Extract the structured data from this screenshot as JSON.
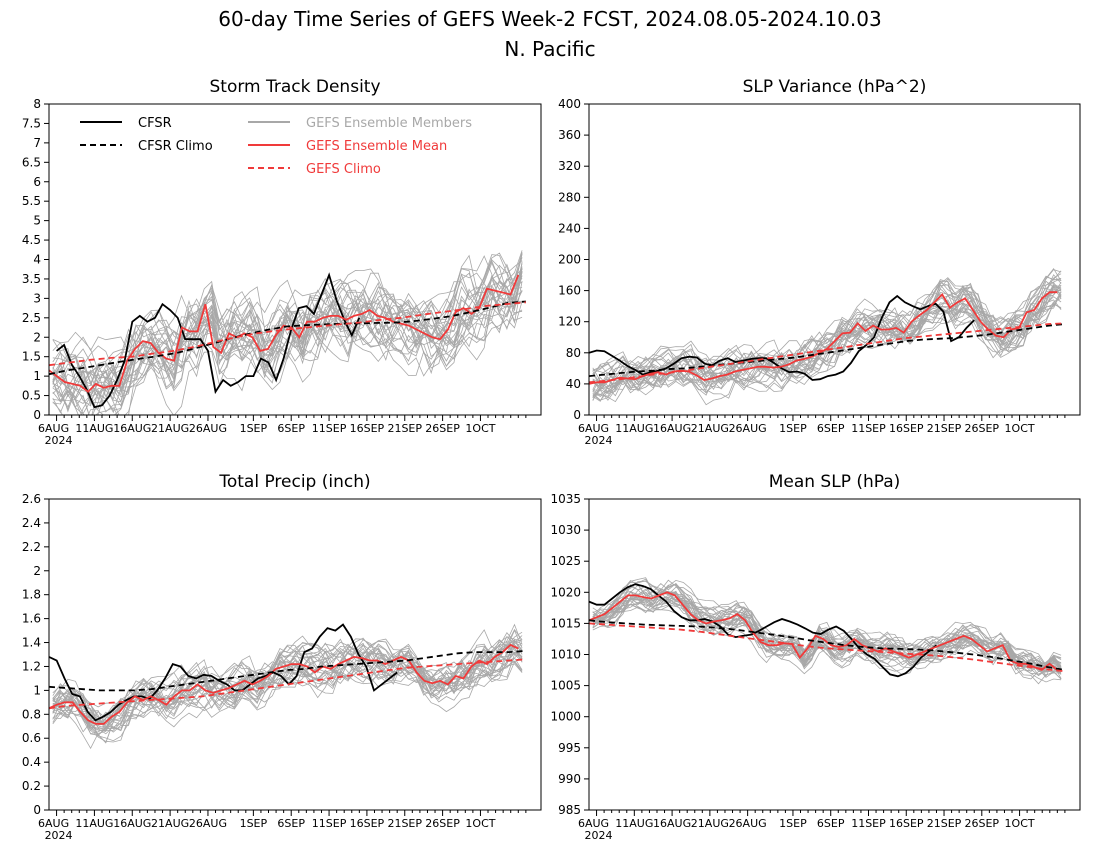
{
  "figure": {
    "title_line1": "60-day Time Series of GEFS Week-2 FCST, 2024.08.05-2024.10.03",
    "title_line2": "N. Pacific"
  },
  "colors": {
    "cfsr": "#000000",
    "members": "#a8a8a8",
    "ens_mean": "#f03a3a"
  },
  "legend": {
    "cfsr": "CFSR",
    "cfsr_climo": "CFSR Climo",
    "members": "GEFS Ensemble Members",
    "ens_mean": "GEFS Ensemble Mean",
    "gefs_climo": "GEFS Climo"
  },
  "x_ticks": [
    "6AUG",
    "11AUG",
    "16AUG",
    "21AUG",
    "26AUG",
    "1SEP",
    "6SEP",
    "11SEP",
    "16SEP",
    "21SEP",
    "26SEP",
    "1OCT"
  ],
  "x_year_label": "2024",
  "chart_data": [
    {
      "type": "line",
      "title": "Storm Track Density",
      "x": "days from 6AUG 2024",
      "ylim": [
        0,
        8
      ],
      "yticks": [
        "0",
        "0.5",
        "1",
        "1.5",
        "2",
        "2.5",
        "3",
        "3.5",
        "4",
        "4.5",
        "5",
        "5.5",
        "6",
        "6.5",
        "7",
        "7.5",
        "8"
      ],
      "series": [
        {
          "name": "CFSR",
          "values": [
            1.65,
            1.8,
            1.3,
            1.0,
            0.65,
            0.2,
            0.25,
            0.5,
            0.9,
            1.4,
            2.4,
            2.55,
            2.4,
            2.5,
            2.85,
            2.7,
            2.5,
            1.95,
            1.95,
            1.95,
            1.65,
            0.6,
            0.9,
            0.75,
            0.85,
            1.0,
            1.0,
            1.45,
            1.35,
            0.9,
            1.45,
            2.2,
            2.75,
            2.8,
            2.6,
            3.1,
            3.6,
            2.95,
            2.45,
            2.05,
            2.5
          ]
        },
        {
          "name": "GEFS Ensemble Mean",
          "values": [
            1.15,
            1.0,
            0.85,
            0.8,
            0.75,
            0.6,
            0.8,
            0.7,
            0.75,
            0.75,
            1.4,
            1.7,
            1.9,
            1.85,
            1.6,
            1.45,
            1.4,
            2.25,
            2.15,
            2.15,
            2.85,
            1.75,
            1.6,
            2.1,
            2.0,
            2.1,
            2.0,
            1.65,
            1.7,
            2.05,
            2.3,
            2.25,
            2.0,
            2.4,
            2.4,
            2.5,
            2.55,
            2.55,
            2.45,
            2.55,
            2.6,
            2.7,
            2.55,
            2.5,
            2.4,
            2.35,
            2.3,
            2.2,
            2.1,
            2.0,
            1.95,
            2.2,
            2.65,
            2.75,
            2.6,
            2.75,
            3.25,
            3.2,
            3.15,
            3.1,
            3.6
          ]
        },
        {
          "name": "CFSR Climo",
          "values": [
            1.05,
            1.15,
            1.22,
            1.3,
            1.38,
            1.45,
            1.52,
            1.6,
            1.72,
            1.85,
            1.98,
            2.1,
            2.2,
            2.28,
            2.31,
            2.33,
            2.35,
            2.36,
            2.37,
            2.38,
            2.42,
            2.48,
            2.55,
            2.65,
            2.76,
            2.88,
            2.92
          ]
        },
        {
          "name": "GEFS Climo",
          "values": [
            1.28,
            1.35,
            1.42,
            1.47,
            1.5,
            1.58,
            1.65,
            1.75,
            1.88,
            2.0,
            2.1,
            2.17,
            2.23,
            2.28,
            2.33,
            2.38,
            2.45,
            2.5,
            2.58,
            2.65,
            2.72,
            2.8,
            2.85,
            2.9
          ]
        }
      ]
    },
    {
      "type": "line",
      "title": "SLP Variance (hPa^2)",
      "x": "days from 6AUG 2024",
      "ylim": [
        0,
        400
      ],
      "yticks": [
        "0",
        "40",
        "80",
        "120",
        "160",
        "200",
        "240",
        "280",
        "320",
        "360",
        "400"
      ],
      "series": [
        {
          "name": "CFSR",
          "values": [
            80,
            83,
            82,
            76,
            70,
            63,
            58,
            52,
            55,
            57,
            60,
            66,
            73,
            75,
            74,
            66,
            64,
            70,
            73,
            68,
            70,
            72,
            73,
            73,
            67,
            60,
            55,
            56,
            53,
            45,
            46,
            50,
            52,
            56,
            67,
            82,
            90,
            100,
            125,
            145,
            153,
            145,
            140,
            136,
            140,
            143,
            133,
            95,
            100,
            112,
            122
          ]
        },
        {
          "name": "GEFS Ensemble Mean",
          "values": [
            40,
            42,
            42,
            45,
            48,
            47,
            46,
            50,
            53,
            55,
            52,
            56,
            57,
            56,
            51,
            45,
            47,
            50,
            52,
            56,
            58,
            60,
            62,
            62,
            61,
            62,
            65,
            70,
            72,
            75,
            80,
            85,
            95,
            105,
            106,
            118,
            108,
            115,
            110,
            110,
            112,
            106,
            120,
            128,
            135,
            145,
            155,
            138,
            145,
            150,
            135,
            120,
            110,
            102,
            100,
            110,
            112,
            132,
            135,
            150,
            158,
            158
          ]
        },
        {
          "name": "CFSR Climo",
          "values": [
            50,
            52,
            54,
            56,
            57,
            59,
            60,
            62,
            64,
            66,
            68,
            70,
            72,
            74,
            77,
            80,
            83,
            86,
            89,
            92,
            95,
            97,
            98,
            99,
            101,
            103,
            106,
            109,
            112,
            115,
            117
          ]
        },
        {
          "name": "GEFS Climo",
          "values": [
            42,
            44,
            46,
            49,
            52,
            54,
            57,
            60,
            63,
            66,
            69,
            72,
            75,
            78,
            81,
            84,
            87,
            90,
            93,
            96,
            99,
            101,
            103,
            105,
            107,
            109,
            111,
            113,
            115,
            117,
            118
          ]
        }
      ]
    },
    {
      "type": "line",
      "title": "Total Precip (inch)",
      "x": "days from 6AUG 2024",
      "ylim": [
        0,
        2.6
      ],
      "yticks": [
        "0",
        "0.2",
        "0.4",
        "0.6",
        "0.8",
        "1",
        "1.2",
        "1.4",
        "1.6",
        "1.8",
        "2",
        "2.2",
        "2.4",
        "2.6"
      ],
      "series": [
        {
          "name": "CFSR",
          "values": [
            1.28,
            1.25,
            1.1,
            0.97,
            0.95,
            0.82,
            0.75,
            0.78,
            0.82,
            0.88,
            0.92,
            0.95,
            0.95,
            0.93,
            1.0,
            1.1,
            1.22,
            1.2,
            1.12,
            1.1,
            1.13,
            1.12,
            1.08,
            1.05,
            1.0,
            1.0,
            1.05,
            1.1,
            1.12,
            1.15,
            1.12,
            1.05,
            1.12,
            1.32,
            1.35,
            1.45,
            1.52,
            1.5,
            1.55,
            1.45,
            1.3,
            1.2,
            1.0,
            1.05,
            1.1,
            1.15
          ]
        },
        {
          "name": "GEFS Ensemble Mean",
          "values": [
            0.85,
            0.88,
            0.9,
            0.9,
            0.82,
            0.75,
            0.72,
            0.72,
            0.78,
            0.82,
            0.9,
            0.95,
            0.92,
            0.95,
            0.92,
            0.88,
            0.95,
            1.0,
            1.0,
            1.05,
            1.0,
            0.98,
            1.0,
            1.02,
            1.05,
            1.08,
            1.05,
            1.08,
            1.12,
            1.18,
            1.2,
            1.22,
            1.22,
            1.2,
            1.15,
            1.2,
            1.18,
            1.22,
            1.25,
            1.28,
            1.27,
            1.25,
            1.25,
            1.22,
            1.25,
            1.28,
            1.25,
            1.15,
            1.08,
            1.06,
            1.08,
            1.05,
            1.12,
            1.1,
            1.2,
            1.25,
            1.22,
            1.28,
            1.32,
            1.38,
            1.35
          ]
        },
        {
          "name": "CFSR Climo",
          "values": [
            1.03,
            1.02,
            1.01,
            1.0,
            1.0,
            1.0,
            1.01,
            1.03,
            1.05,
            1.07,
            1.09,
            1.11,
            1.13,
            1.15,
            1.17,
            1.18,
            1.2,
            1.21,
            1.22,
            1.23,
            1.24,
            1.25,
            1.27,
            1.29,
            1.31,
            1.32,
            1.32,
            1.32,
            1.33
          ]
        },
        {
          "name": "GEFS Climo",
          "values": [
            0.85,
            0.87,
            0.88,
            0.89,
            0.9,
            0.91,
            0.92,
            0.93,
            0.94,
            0.95,
            0.97,
            0.99,
            1.01,
            1.03,
            1.05,
            1.07,
            1.09,
            1.11,
            1.13,
            1.15,
            1.17,
            1.19,
            1.2,
            1.21,
            1.22,
            1.23,
            1.24,
            1.25,
            1.26
          ]
        }
      ]
    },
    {
      "type": "line",
      "title": "Mean SLP (hPa)",
      "x": "days from 6AUG 2024",
      "ylim": [
        985,
        1035
      ],
      "yticks": [
        "985",
        "990",
        "995",
        "1000",
        "1005",
        "1010",
        "1015",
        "1020",
        "1025",
        "1030",
        "1035"
      ],
      "series": [
        {
          "name": "CFSR",
          "values": [
            1018.5,
            1018,
            1018,
            1019,
            1020,
            1020.8,
            1021.3,
            1021,
            1020.5,
            1019.5,
            1018.5,
            1017,
            1016,
            1015.5,
            1015.5,
            1015.7,
            1015.3,
            1014.5,
            1013.2,
            1012.8,
            1013,
            1013.2,
            1013.8,
            1014.5,
            1015.2,
            1015.7,
            1015.3,
            1014.8,
            1014.2,
            1013.5,
            1013.3,
            1014,
            1014.5,
            1013.8,
            1012.5,
            1011,
            1010,
            1009.3,
            1008,
            1006.8,
            1006.5,
            1007,
            1008,
            1009.5,
            1010.5,
            1011.5
          ]
        },
        {
          "name": "GEFS Ensemble Mean",
          "values": [
            1015.5,
            1016,
            1016.5,
            1017.5,
            1018.5,
            1019.5,
            1019.5,
            1019.2,
            1019,
            1019.5,
            1020,
            1019.5,
            1018,
            1016.5,
            1015.5,
            1015,
            1015.3,
            1015.5,
            1015.8,
            1016.5,
            1015.5,
            1013.5,
            1012,
            1011.5,
            1011.5,
            1011.8,
            1011.7,
            1009.5,
            1011,
            1013,
            1012.5,
            1011.5,
            1011.2,
            1011.5,
            1012.5,
            1011.5,
            1011,
            1010.5,
            1011,
            1010.5,
            1010,
            1009.5,
            1010,
            1010.5,
            1011,
            1011.5,
            1012,
            1012.5,
            1013,
            1012.5,
            1011.5,
            1010.5,
            1011,
            1011.5,
            1009,
            1008.5,
            1008.5,
            1008,
            1007.5,
            1008.5,
            1007.5
          ]
        },
        {
          "name": "CFSR Climo",
          "values": [
            1015.5,
            1015.2,
            1015,
            1014.8,
            1014.7,
            1014.6,
            1014.5,
            1014.3,
            1014,
            1013.6,
            1013.2,
            1012.8,
            1012.3,
            1011.9,
            1011.5,
            1011.2,
            1011,
            1010.9,
            1010.8,
            1010.6,
            1010.3,
            1010,
            1009.6,
            1009.1,
            1008.6,
            1008,
            1007.5
          ]
        },
        {
          "name": "GEFS Climo",
          "values": [
            1015,
            1014.8,
            1014.6,
            1014.4,
            1014.2,
            1014,
            1013.7,
            1013.3,
            1012.9,
            1012.5,
            1012.1,
            1011.7,
            1011.3,
            1011,
            1010.8,
            1010.6,
            1010.4,
            1010.2,
            1010,
            1009.8,
            1009.5,
            1009.2,
            1008.8,
            1008.4,
            1008,
            1007.6,
            1007.3
          ]
        }
      ]
    }
  ]
}
